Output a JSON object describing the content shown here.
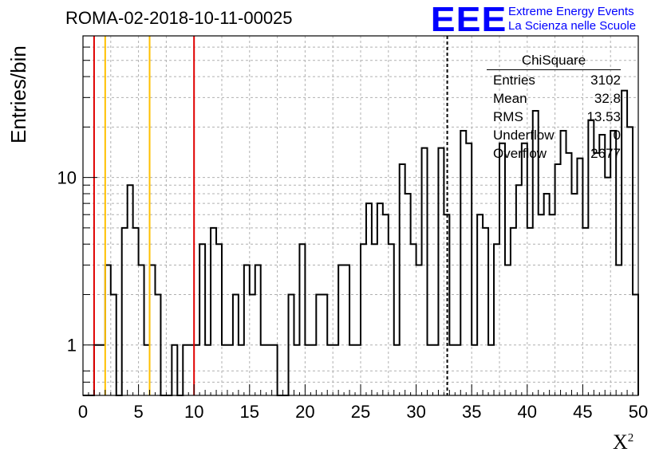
{
  "title": "ROMA-02-2018-10-11-00025",
  "logo": {
    "mark": "EEE",
    "line1": "Extreme Energy Events",
    "line2": "La Scienza nelle Scuole",
    "color": "#0000ff"
  },
  "stats_box": {
    "name": "ChiSquare",
    "rows": [
      {
        "label": "Entries",
        "value": "3102"
      },
      {
        "label": "Mean",
        "value": "32.8"
      },
      {
        "label": "RMS",
        "value": "13.53"
      },
      {
        "label": "Underflow",
        "value": "0"
      },
      {
        "label": "Overflow",
        "value": "2677"
      }
    ]
  },
  "chart_data": {
    "type": "bar",
    "title": "ROMA-02-2018-10-11-00025",
    "xlabel": "X²",
    "ylabel": "Entries/bin",
    "x_range": [
      0,
      50
    ],
    "y_range": [
      0.5,
      70
    ],
    "y_scale": "log",
    "grid": true,
    "bin_width": 0.5,
    "x_ticks": [
      0,
      5,
      10,
      15,
      20,
      25,
      30,
      35,
      40,
      45,
      50
    ],
    "y_ticks": [
      1,
      10
    ],
    "histogram_color": "#000000",
    "values": [
      0,
      0,
      1,
      1,
      3,
      2,
      0,
      5,
      9,
      5,
      3,
      1,
      3,
      2,
      0,
      0,
      1,
      0,
      1,
      1,
      1,
      4,
      1,
      5,
      4,
      1,
      1,
      2,
      1,
      3,
      2,
      3,
      1,
      1,
      1,
      0,
      0,
      2,
      1,
      4,
      1,
      1,
      2,
      2,
      1,
      1,
      3,
      3,
      1,
      1,
      4,
      7,
      4,
      7,
      6,
      4,
      1,
      12,
      8,
      4,
      3,
      15,
      1,
      1,
      15,
      6,
      1,
      1,
      19,
      16,
      1,
      6,
      5,
      1,
      4,
      16,
      3,
      5,
      9,
      16,
      5,
      25,
      6,
      8,
      6,
      12,
      19,
      14,
      8,
      13,
      5,
      22,
      14,
      18,
      10,
      19,
      3,
      33,
      20,
      2
    ],
    "vertical_lines": [
      {
        "x": 1,
        "color": "#e00000"
      },
      {
        "x": 10,
        "color": "#e00000"
      },
      {
        "x": 2,
        "color": "#ffc000"
      },
      {
        "x": 6,
        "color": "#ffc000"
      },
      {
        "x": 32.8,
        "color": "#000000",
        "dashed": true
      }
    ]
  }
}
